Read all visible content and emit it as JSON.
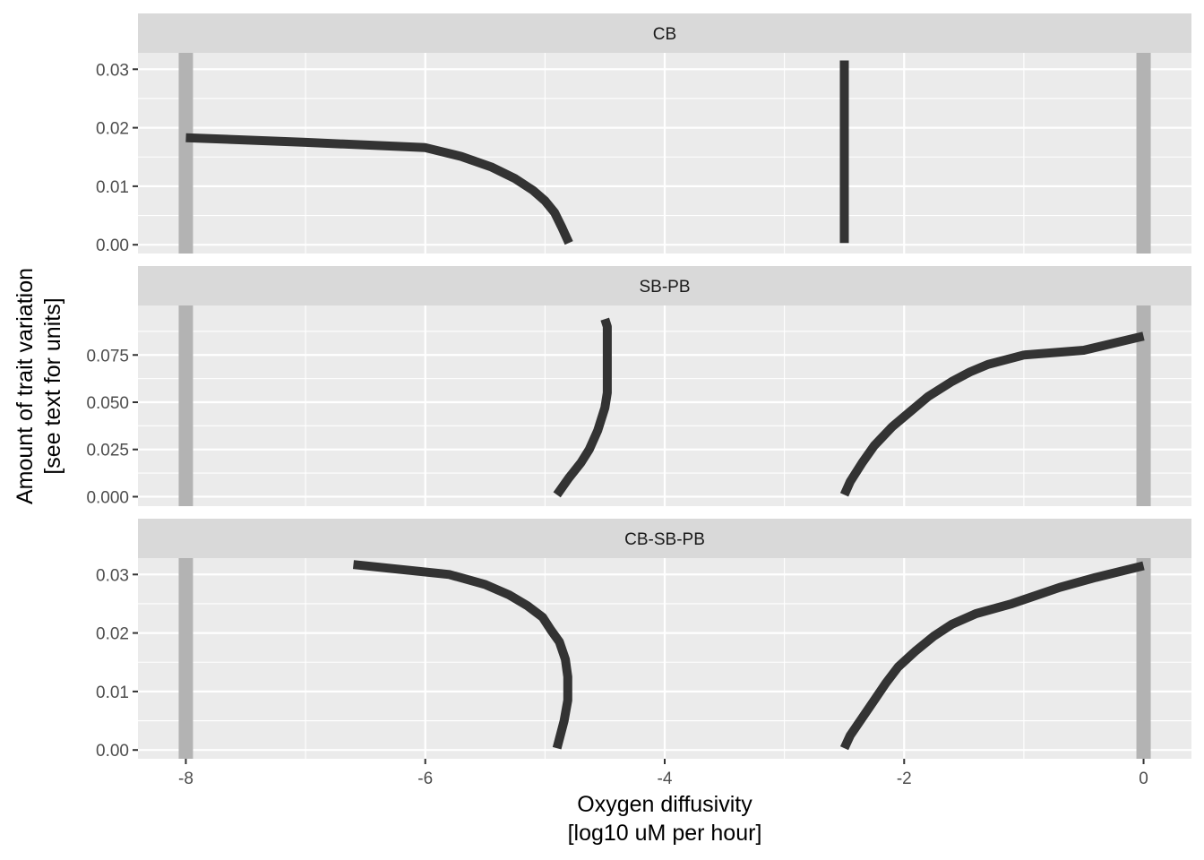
{
  "chart_data": {
    "type": "line",
    "xlabel": [
      "Oxygen diffusivity",
      "[log10 uM per hour]"
    ],
    "ylabel": [
      "Amount of trait variation",
      "[see text for units]"
    ],
    "xlim": [
      -8.4,
      0.4
    ],
    "x_ticks": [
      -8,
      -6,
      -4,
      -2,
      0
    ],
    "x_tick_labels": [
      "-8",
      "-6",
      "-4",
      "-2",
      "0"
    ],
    "boundary_x": [
      -8,
      0
    ],
    "grid": true,
    "facets": [
      {
        "label": "CB",
        "ylim": [
          -0.0015,
          0.0328
        ],
        "y_ticks": [
          0,
          0.01,
          0.02,
          0.03
        ],
        "y_tick_labels": [
          "0.00",
          "0.01",
          "0.02",
          "0.03"
        ],
        "series": [
          {
            "points": [
              [
                -8.0,
                0.0183
              ],
              [
                -7.0,
                0.0175
              ],
              [
                -6.0,
                0.0166
              ],
              [
                -5.7,
                0.0151
              ],
              [
                -5.45,
                0.0133
              ],
              [
                -5.25,
                0.0113
              ],
              [
                -5.1,
                0.0093
              ],
              [
                -5.0,
                0.0075
              ],
              [
                -4.92,
                0.0055
              ],
              [
                -4.86,
                0.003
              ],
              [
                -4.8,
                0.0003
              ]
            ]
          },
          {
            "points": [
              [
                -2.5,
                0.0315
              ],
              [
                -2.5,
                0.0003
              ]
            ]
          }
        ]
      },
      {
        "label": "SB-PB",
        "ylim": [
          -0.005,
          0.1012
        ],
        "y_ticks": [
          0,
          0.025,
          0.05,
          0.075
        ],
        "y_tick_labels": [
          "0.000",
          "0.025",
          "0.050",
          "0.075"
        ],
        "series": [
          {
            "points": [
              [
                -4.5,
                0.094
              ],
              [
                -4.48,
                0.09
              ],
              [
                -4.48,
                0.055
              ],
              [
                -4.5,
                0.047
              ],
              [
                -4.56,
                0.035
              ],
              [
                -4.63,
                0.025
              ],
              [
                -4.7,
                0.018
              ],
              [
                -4.8,
                0.01
              ],
              [
                -4.9,
                0.001
              ]
            ]
          },
          {
            "points": [
              [
                -2.5,
                0.001
              ],
              [
                -2.45,
                0.008
              ],
              [
                -2.35,
                0.018
              ],
              [
                -2.25,
                0.027
              ],
              [
                -2.1,
                0.037
              ],
              [
                -1.95,
                0.045
              ],
              [
                -1.8,
                0.053
              ],
              [
                -1.6,
                0.061
              ],
              [
                -1.45,
                0.066
              ],
              [
                -1.3,
                0.07
              ],
              [
                -1.0,
                0.075
              ],
              [
                -0.5,
                0.0775
              ],
              [
                0.0,
                0.085
              ]
            ]
          }
        ]
      },
      {
        "label": "CB-SB-PB",
        "ylim": [
          -0.0015,
          0.0328
        ],
        "y_ticks": [
          0,
          0.01,
          0.02,
          0.03
        ],
        "y_tick_labels": [
          "0.00",
          "0.01",
          "0.02",
          "0.03"
        ],
        "series": [
          {
            "points": [
              [
                -6.6,
                0.0317
              ],
              [
                -5.8,
                0.03
              ],
              [
                -5.5,
                0.0283
              ],
              [
                -5.3,
                0.0265
              ],
              [
                -5.15,
                0.0247
              ],
              [
                -5.02,
                0.0227
              ],
              [
                -4.95,
                0.0205
              ],
              [
                -4.88,
                0.0185
              ],
              [
                -4.83,
                0.0155
              ],
              [
                -4.81,
                0.0125
              ],
              [
                -4.81,
                0.0085
              ],
              [
                -4.84,
                0.005
              ],
              [
                -4.9,
                0.0003
              ]
            ]
          },
          {
            "points": [
              [
                -2.5,
                0.0003
              ],
              [
                -2.45,
                0.0025
              ],
              [
                -2.35,
                0.0055
              ],
              [
                -2.25,
                0.0085
              ],
              [
                -2.15,
                0.0115
              ],
              [
                -2.05,
                0.0142
              ],
              [
                -1.9,
                0.017
              ],
              [
                -1.75,
                0.0195
              ],
              [
                -1.6,
                0.0215
              ],
              [
                -1.4,
                0.0233
              ],
              [
                -1.1,
                0.025
              ],
              [
                -0.7,
                0.0278
              ],
              [
                -0.4,
                0.0295
              ],
              [
                0.0,
                0.0315
              ]
            ]
          }
        ]
      }
    ]
  }
}
